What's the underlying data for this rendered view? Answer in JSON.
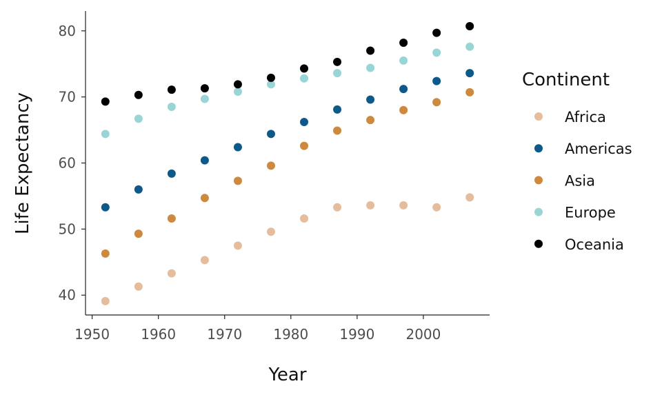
{
  "chart_data": {
    "type": "scatter",
    "xlabel": "Year",
    "ylabel": "Life Expectancy",
    "legend_title": "Continent",
    "legend_position": "right",
    "grid": false,
    "xlim": [
      1949,
      2010
    ],
    "ylim": [
      37,
      83
    ],
    "x_ticks": [
      1950,
      1960,
      1970,
      1980,
      1990,
      2000
    ],
    "y_ticks": [
      40,
      50,
      60,
      70,
      80
    ],
    "x": [
      1952,
      1957,
      1962,
      1967,
      1972,
      1977,
      1982,
      1987,
      1992,
      1997,
      2002,
      2007
    ],
    "series": [
      {
        "name": "Africa",
        "color": "#E5BD9C",
        "values": [
          39.1,
          41.3,
          43.3,
          45.3,
          47.5,
          49.6,
          51.6,
          53.3,
          53.6,
          53.6,
          53.3,
          54.8
        ]
      },
      {
        "name": "Americas",
        "color": "#0D5A8A",
        "values": [
          53.3,
          56.0,
          58.4,
          60.4,
          62.4,
          64.4,
          66.2,
          68.1,
          69.6,
          71.2,
          72.4,
          73.6
        ]
      },
      {
        "name": "Asia",
        "color": "#CD8A3E",
        "values": [
          46.3,
          49.3,
          51.6,
          54.7,
          57.3,
          59.6,
          62.6,
          64.9,
          66.5,
          68.0,
          69.2,
          70.7
        ]
      },
      {
        "name": "Europe",
        "color": "#9AD5D6",
        "values": [
          64.4,
          66.7,
          68.5,
          69.7,
          70.8,
          71.9,
          72.8,
          73.6,
          74.4,
          75.5,
          76.7,
          77.6
        ]
      },
      {
        "name": "Oceania",
        "color": "#000000",
        "values": [
          69.3,
          70.3,
          71.1,
          71.3,
          71.9,
          72.9,
          74.3,
          75.3,
          77.0,
          78.2,
          79.7,
          80.7
        ]
      }
    ]
  }
}
